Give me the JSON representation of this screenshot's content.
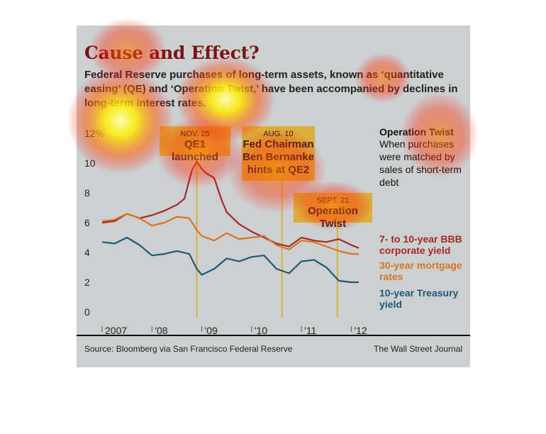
{
  "title": "Cause and Effect?",
  "subtitle": "Federal Reserve purchases of long-term assets, known as ‘quantitative easing’ (QE) and ‘Operation Twist,’ have been accompanied by declines in long-term interest rates.",
  "annotations": {
    "qe1": {
      "date": "NOV. 25",
      "text": "QE1 launched"
    },
    "qe2": {
      "date": "AUG. 10",
      "text": "Fed Chairman Ben Bernanke hints at QE2"
    },
    "twist": {
      "date": "SEPT. 21",
      "text": "Operation Twist"
    }
  },
  "note": {
    "title": "Operation Twist",
    "text": "When purchases were matched by sales of short-term debt"
  },
  "legend": {
    "bbb": "7- to 10-year BBB corporate yield",
    "mortgage": "30-year mortgage rates",
    "treasury": "10-year Treasury yield"
  },
  "source": "Source: Bloomberg via San Francisco Federal Reserve",
  "credit": "The Wall Street Journal",
  "colors": {
    "bbb": "#a5282a",
    "mortgage": "#d7751f",
    "treasury": "#1b5a78",
    "event_line": "#d9b33c",
    "background": "#cdd0d0"
  },
  "chart_data": {
    "type": "line",
    "ylim": [
      0,
      12
    ],
    "yticks": [
      0,
      2,
      4,
      6,
      8,
      10,
      12
    ],
    "ytick_labels": [
      "0",
      "2",
      "4",
      "6",
      "8",
      "10",
      "12%"
    ],
    "xlim": [
      2007.0,
      2012.25
    ],
    "xticks": [
      2007,
      2008,
      2009,
      2010,
      2011,
      2012
    ],
    "xtick_labels": [
      "2007",
      "'08",
      "'09",
      "'10",
      "'11",
      "'12"
    ],
    "events": [
      {
        "name": "qe1",
        "x": 2008.9
      },
      {
        "name": "qe2",
        "x": 2010.61
      },
      {
        "name": "twist",
        "x": 2011.72
      }
    ],
    "series": [
      {
        "key": "bbb",
        "name": "7- to 10-year BBB corporate yield",
        "x": [
          2007.0,
          2007.25,
          2007.5,
          2007.75,
          2008.0,
          2008.25,
          2008.5,
          2008.65,
          2008.8,
          2008.9,
          2009.0,
          2009.1,
          2009.25,
          2009.4,
          2009.5,
          2009.75,
          2010.0,
          2010.25,
          2010.5,
          2010.75,
          2011.0,
          2011.25,
          2011.5,
          2011.75,
          2012.0,
          2012.15
        ],
        "values": [
          6.0,
          6.1,
          6.6,
          6.3,
          6.5,
          6.8,
          7.2,
          7.6,
          9.5,
          10.1,
          9.6,
          9.3,
          9.0,
          7.5,
          6.7,
          5.9,
          5.4,
          5.0,
          4.6,
          4.4,
          5.0,
          4.8,
          4.7,
          4.9,
          4.5,
          4.3
        ]
      },
      {
        "key": "mortgage",
        "name": "30-year mortgage rates",
        "x": [
          2007.0,
          2007.25,
          2007.5,
          2007.75,
          2008.0,
          2008.25,
          2008.5,
          2008.75,
          2008.9,
          2009.0,
          2009.25,
          2009.5,
          2009.75,
          2010.0,
          2010.25,
          2010.5,
          2010.75,
          2011.0,
          2011.25,
          2011.5,
          2011.75,
          2012.0,
          2012.15
        ],
        "values": [
          6.1,
          6.2,
          6.6,
          6.3,
          5.8,
          6.0,
          6.4,
          6.3,
          5.5,
          5.1,
          4.8,
          5.3,
          4.9,
          5.0,
          5.1,
          4.5,
          4.2,
          4.8,
          4.7,
          4.4,
          4.1,
          3.9,
          3.9
        ]
      },
      {
        "key": "treasury",
        "name": "10-year Treasury yield",
        "x": [
          2007.0,
          2007.25,
          2007.5,
          2007.75,
          2008.0,
          2008.25,
          2008.5,
          2008.75,
          2008.9,
          2009.0,
          2009.25,
          2009.5,
          2009.75,
          2010.0,
          2010.25,
          2010.5,
          2010.75,
          2011.0,
          2011.25,
          2011.5,
          2011.75,
          2012.0,
          2012.15
        ],
        "values": [
          4.7,
          4.6,
          5.0,
          4.5,
          3.8,
          3.9,
          4.1,
          3.9,
          2.9,
          2.5,
          2.9,
          3.6,
          3.4,
          3.7,
          3.8,
          2.9,
          2.6,
          3.4,
          3.5,
          3.0,
          2.1,
          2.0,
          2.0
        ]
      }
    ]
  }
}
